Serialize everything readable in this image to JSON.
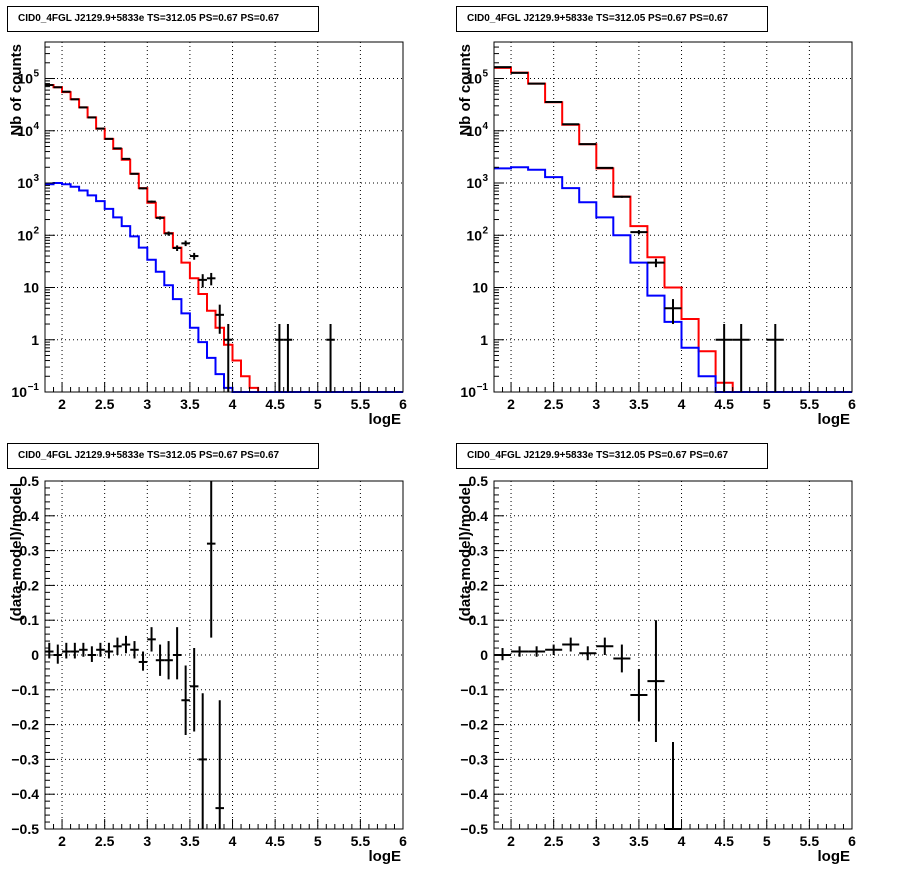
{
  "chart_data": [
    {
      "id": "spectrum-left",
      "type": "line",
      "title": "CID0_4FGL J2129.9+5833e TS=312.05 PS=0.67 PS=0.67",
      "xlabel": "logE",
      "ylabel": "Nb of counts",
      "xlim": [
        1.8,
        6.0
      ],
      "ylim": [
        0.1,
        500000
      ],
      "yscale": "log",
      "grid": true,
      "x_ticks": [
        "2",
        "2.5",
        "3",
        "3.5",
        "4",
        "4.5",
        "5",
        "5.5",
        "6"
      ],
      "y_ticks": [
        {
          "v": 0.1,
          "label": "10",
          "exp": "−1"
        },
        {
          "v": 1,
          "label": "1"
        },
        {
          "v": 10,
          "label": "10"
        },
        {
          "v": 100,
          "label": "10",
          "exp": "2"
        },
        {
          "v": 1000,
          "label": "10",
          "exp": "3"
        },
        {
          "v": 10000,
          "label": "10",
          "exp": "4"
        },
        {
          "v": 100000,
          "label": "10",
          "exp": "5"
        }
      ],
      "series": [
        {
          "color": "#ff0000",
          "style": "step",
          "edges": [
            1.8,
            1.9,
            2.0,
            2.1,
            2.2,
            2.3,
            2.4,
            2.5,
            2.6,
            2.7,
            2.8,
            2.9,
            3.0,
            3.1,
            3.2,
            3.3,
            3.4,
            3.5,
            3.6,
            3.7,
            3.8,
            3.9,
            4.0,
            4.1,
            4.2,
            4.3,
            4.4,
            4.5,
            4.6,
            4.7
          ],
          "values": [
            75000,
            68000,
            55000,
            40000,
            28000,
            18000,
            11000,
            7000,
            4500,
            2800,
            1500,
            800,
            420,
            220,
            110,
            58,
            30,
            15,
            7.5,
            3.6,
            1.7,
            0.8,
            0.4,
            0.2,
            0.12,
            0.1,
            0.1,
            0.1,
            0.1
          ]
        },
        {
          "color": "#0000ff",
          "style": "step",
          "edges": [
            1.8,
            1.9,
            2.0,
            2.1,
            2.2,
            2.3,
            2.4,
            2.5,
            2.6,
            2.7,
            2.8,
            2.9,
            3.0,
            3.1,
            3.2,
            3.3,
            3.4,
            3.5,
            3.6,
            3.7,
            3.8,
            3.9,
            4.0,
            4.1,
            4.2,
            4.3
          ],
          "values": [
            950,
            1000,
            950,
            850,
            720,
            580,
            450,
            320,
            220,
            150,
            95,
            58,
            34,
            20,
            11,
            6,
            3.2,
            1.7,
            0.9,
            0.45,
            0.22,
            0.12,
            0.1,
            0.1,
            0.1
          ]
        },
        {
          "color": "#000000",
          "style": "errorbar",
          "points": [
            {
              "x": 1.85,
              "y": 75000,
              "xerr": 0.05,
              "lo": 74700,
              "hi": 75300
            },
            {
              "x": 1.95,
              "y": 68000,
              "xerr": 0.05,
              "lo": 67700,
              "hi": 68300
            },
            {
              "x": 2.05,
              "y": 56000,
              "xerr": 0.05,
              "lo": 55700,
              "hi": 56300
            },
            {
              "x": 2.15,
              "y": 40000,
              "xerr": 0.05,
              "lo": 39800,
              "hi": 40200
            },
            {
              "x": 2.25,
              "y": 28000,
              "xerr": 0.05,
              "lo": 27800,
              "hi": 28200
            },
            {
              "x": 2.35,
              "y": 18000,
              "xerr": 0.05,
              "lo": 17800,
              "hi": 18200
            },
            {
              "x": 2.45,
              "y": 11000,
              "xerr": 0.05,
              "lo": 10900,
              "hi": 11100
            },
            {
              "x": 2.55,
              "y": 7000,
              "xerr": 0.05,
              "lo": 6900,
              "hi": 7100
            },
            {
              "x": 2.65,
              "y": 4600,
              "xerr": 0.05,
              "lo": 4530,
              "hi": 4670
            },
            {
              "x": 2.75,
              "y": 2900,
              "xerr": 0.05,
              "lo": 2850,
              "hi": 2950
            },
            {
              "x": 2.85,
              "y": 1500,
              "xerr": 0.05,
              "lo": 1460,
              "hi": 1540
            },
            {
              "x": 2.95,
              "y": 790,
              "xerr": 0.05,
              "lo": 760,
              "hi": 820
            },
            {
              "x": 3.05,
              "y": 440,
              "xerr": 0.05,
              "lo": 420,
              "hi": 460
            },
            {
              "x": 3.15,
              "y": 215,
              "xerr": 0.05,
              "lo": 200,
              "hi": 230
            },
            {
              "x": 3.25,
              "y": 108,
              "xerr": 0.05,
              "lo": 98,
              "hi": 118
            },
            {
              "x": 3.35,
              "y": 57,
              "xerr": 0.05,
              "lo": 50,
              "hi": 64
            },
            {
              "x": 3.45,
              "y": 70,
              "xerr": 0.05,
              "lo": 62,
              "hi": 79
            },
            {
              "x": 3.55,
              "y": 40,
              "xerr": 0.05,
              "lo": 34,
              "hi": 46
            },
            {
              "x": 3.65,
              "y": 14,
              "xerr": 0.05,
              "lo": 10,
              "hi": 18
            },
            {
              "x": 3.75,
              "y": 15,
              "xerr": 0.05,
              "lo": 11,
              "hi": 19
            },
            {
              "x": 3.85,
              "y": 3,
              "xerr": 0.05,
              "lo": 1.3,
              "hi": 4.7
            },
            {
              "x": 3.95,
              "y": 1,
              "xerr": 0.05,
              "lo": 0.1,
              "hi": 2.0
            },
            {
              "x": 4.55,
              "y": 1,
              "xerr": 0.05,
              "lo": 0.1,
              "hi": 2.0
            },
            {
              "x": 4.65,
              "y": 1,
              "xerr": 0.05,
              "lo": 0.1,
              "hi": 2.0
            },
            {
              "x": 5.15,
              "y": 1,
              "xerr": 0.05,
              "lo": 0.1,
              "hi": 2.0
            }
          ]
        }
      ]
    },
    {
      "id": "spectrum-right",
      "type": "line",
      "title": "CID0_4FGL J2129.9+5833e TS=312.05 PS=0.67 PS=0.67",
      "xlabel": "logE",
      "ylabel": "Nb of counts",
      "xlim": [
        1.8,
        6.0
      ],
      "ylim": [
        0.1,
        500000
      ],
      "yscale": "log",
      "grid": true,
      "x_ticks": [
        "2",
        "2.5",
        "3",
        "3.5",
        "4",
        "4.5",
        "5",
        "5.5",
        "6"
      ],
      "y_ticks": [
        {
          "v": 0.1,
          "label": "10",
          "exp": "−1"
        },
        {
          "v": 1,
          "label": "1"
        },
        {
          "v": 10,
          "label": "10"
        },
        {
          "v": 100,
          "label": "10",
          "exp": "2"
        },
        {
          "v": 1000,
          "label": "10",
          "exp": "3"
        },
        {
          "v": 10000,
          "label": "10",
          "exp": "4"
        },
        {
          "v": 100000,
          "label": "10",
          "exp": "5"
        }
      ],
      "series": [
        {
          "color": "#ff0000",
          "style": "step",
          "edges": [
            1.8,
            2.0,
            2.2,
            2.4,
            2.6,
            2.8,
            3.0,
            3.2,
            3.4,
            3.6,
            3.8,
            4.0,
            4.2,
            4.4,
            4.6,
            4.8
          ],
          "values": [
            160000,
            130000,
            80000,
            35000,
            13000,
            5500,
            1900,
            550,
            150,
            38,
            10,
            2.5,
            0.6,
            0.15,
            0.1
          ]
        },
        {
          "color": "#0000ff",
          "style": "step",
          "edges": [
            1.8,
            2.0,
            2.2,
            2.4,
            2.6,
            2.8,
            3.0,
            3.2,
            3.4,
            3.6,
            3.8,
            4.0,
            4.2,
            4.4,
            4.6
          ],
          "values": [
            1900,
            2000,
            1800,
            1300,
            800,
            430,
            220,
            100,
            30,
            7,
            2.2,
            0.7,
            0.2,
            0.1
          ]
        },
        {
          "color": "#000000",
          "style": "errorbar",
          "points": [
            {
              "x": 1.9,
              "y": 165000,
              "xerr": 0.1,
              "lo": 164500,
              "hi": 165500
            },
            {
              "x": 2.1,
              "y": 128000,
              "xerr": 0.1,
              "lo": 127600,
              "hi": 128400
            },
            {
              "x": 2.3,
              "y": 80000,
              "xerr": 0.1,
              "lo": 79700,
              "hi": 80300
            },
            {
              "x": 2.5,
              "y": 35500,
              "xerr": 0.1,
              "lo": 35300,
              "hi": 35700
            },
            {
              "x": 2.7,
              "y": 13300,
              "xerr": 0.1,
              "lo": 13180,
              "hi": 13420
            },
            {
              "x": 2.9,
              "y": 5550,
              "xerr": 0.1,
              "lo": 5480,
              "hi": 5620
            },
            {
              "x": 3.1,
              "y": 1950,
              "xerr": 0.1,
              "lo": 1910,
              "hi": 1990
            },
            {
              "x": 3.3,
              "y": 545,
              "xerr": 0.1,
              "lo": 522,
              "hi": 568
            },
            {
              "x": 3.5,
              "y": 115,
              "xerr": 0.1,
              "lo": 105,
              "hi": 126
            },
            {
              "x": 3.7,
              "y": 30,
              "xerr": 0.1,
              "lo": 24.5,
              "hi": 35.5
            },
            {
              "x": 3.9,
              "y": 4,
              "xerr": 0.1,
              "lo": 2,
              "hi": 6
            },
            {
              "x": 4.5,
              "y": 1,
              "xerr": 0.1,
              "lo": 0.1,
              "hi": 2.0
            },
            {
              "x": 4.7,
              "y": 1,
              "xerr": 0.1,
              "lo": 0.1,
              "hi": 2.0
            },
            {
              "x": 5.1,
              "y": 1,
              "xerr": 0.1,
              "lo": 0.1,
              "hi": 2.0
            }
          ]
        }
      ]
    },
    {
      "id": "residual-left",
      "type": "scatter",
      "title": "CID0_4FGL J2129.9+5833e TS=312.05 PS=0.67 PS=0.67",
      "xlabel": "logE",
      "ylabel": "(data-model)/model",
      "xlim": [
        1.8,
        6.0
      ],
      "ylim": [
        -0.5,
        0.5
      ],
      "yscale": "linear",
      "grid": true,
      "x_ticks": [
        "2",
        "2.5",
        "3",
        "3.5",
        "4",
        "4.5",
        "5",
        "5.5",
        "6"
      ],
      "y_ticks": [
        {
          "v": -0.5,
          "label": "−0.5"
        },
        {
          "v": -0.4,
          "label": "−0.4"
        },
        {
          "v": -0.3,
          "label": "−0.3"
        },
        {
          "v": -0.2,
          "label": "−0.2"
        },
        {
          "v": -0.1,
          "label": "−0.1"
        },
        {
          "v": 0,
          "label": "0"
        },
        {
          "v": 0.1,
          "label": "0.1"
        },
        {
          "v": 0.2,
          "label": "0.2"
        },
        {
          "v": 0.3,
          "label": "0.3"
        },
        {
          "v": 0.4,
          "label": "0.4"
        },
        {
          "v": 0.5,
          "label": "0.5"
        }
      ],
      "series": [
        {
          "color": "#000000",
          "style": "errorbar",
          "points": [
            {
              "x": 1.85,
              "y": 0.01,
              "xerr": 0.05,
              "lo": -0.01,
              "hi": 0.035
            },
            {
              "x": 1.95,
              "y": 0.0,
              "xerr": 0.05,
              "lo": -0.025,
              "hi": 0.03
            },
            {
              "x": 2.05,
              "y": 0.01,
              "xerr": 0.05,
              "lo": -0.01,
              "hi": 0.035
            },
            {
              "x": 2.15,
              "y": 0.01,
              "xerr": 0.05,
              "lo": -0.01,
              "hi": 0.035
            },
            {
              "x": 2.25,
              "y": 0.015,
              "xerr": 0.05,
              "lo": -0.005,
              "hi": 0.035
            },
            {
              "x": 2.35,
              "y": 0.0,
              "xerr": 0.05,
              "lo": -0.02,
              "hi": 0.025
            },
            {
              "x": 2.45,
              "y": 0.015,
              "xerr": 0.05,
              "lo": -0.005,
              "hi": 0.035
            },
            {
              "x": 2.55,
              "y": 0.01,
              "xerr": 0.05,
              "lo": -0.01,
              "hi": 0.035
            },
            {
              "x": 2.65,
              "y": 0.025,
              "xerr": 0.05,
              "lo": 0.0,
              "hi": 0.05
            },
            {
              "x": 2.75,
              "y": 0.03,
              "xerr": 0.05,
              "lo": 0.005,
              "hi": 0.055
            },
            {
              "x": 2.85,
              "y": 0.015,
              "xerr": 0.05,
              "lo": -0.01,
              "hi": 0.04
            },
            {
              "x": 2.95,
              "y": -0.02,
              "xerr": 0.05,
              "lo": -0.045,
              "hi": 0.01
            },
            {
              "x": 3.05,
              "y": 0.045,
              "xerr": 0.05,
              "lo": 0.01,
              "hi": 0.08
            },
            {
              "x": 3.15,
              "y": -0.015,
              "xerr": 0.05,
              "lo": -0.06,
              "hi": 0.03
            },
            {
              "x": 3.25,
              "y": -0.015,
              "xerr": 0.05,
              "lo": -0.07,
              "hi": 0.04
            },
            {
              "x": 3.35,
              "y": 0.0,
              "xerr": 0.05,
              "lo": -0.07,
              "hi": 0.08
            },
            {
              "x": 3.45,
              "y": -0.13,
              "xerr": 0.05,
              "lo": -0.23,
              "hi": -0.03
            },
            {
              "x": 3.55,
              "y": -0.09,
              "xerr": 0.05,
              "lo": -0.22,
              "hi": 0.02
            },
            {
              "x": 3.65,
              "y": -0.3,
              "xerr": 0.05,
              "lo": -0.5,
              "hi": -0.11
            },
            {
              "x": 3.75,
              "y": 0.32,
              "xerr": 0.05,
              "lo": 0.05,
              "hi": 0.5
            },
            {
              "x": 3.85,
              "y": -0.44,
              "xerr": 0.05,
              "lo": -0.5,
              "hi": -0.13
            }
          ]
        }
      ]
    },
    {
      "id": "residual-right",
      "type": "scatter",
      "title": "CID0_4FGL J2129.9+5833e TS=312.05 PS=0.67 PS=0.67",
      "xlabel": "logE",
      "ylabel": "(data-model)/model",
      "xlim": [
        1.8,
        6.0
      ],
      "ylim": [
        -0.5,
        0.5
      ],
      "yscale": "linear",
      "grid": true,
      "x_ticks": [
        "2",
        "2.5",
        "3",
        "3.5",
        "4",
        "4.5",
        "5",
        "5.5",
        "6"
      ],
      "y_ticks": [
        {
          "v": -0.5,
          "label": "−0.5"
        },
        {
          "v": -0.4,
          "label": "−0.4"
        },
        {
          "v": -0.3,
          "label": "−0.3"
        },
        {
          "v": -0.2,
          "label": "−0.2"
        },
        {
          "v": -0.1,
          "label": "−0.1"
        },
        {
          "v": 0,
          "label": "0"
        },
        {
          "v": 0.1,
          "label": "0.1"
        },
        {
          "v": 0.2,
          "label": "0.2"
        },
        {
          "v": 0.3,
          "label": "0.3"
        },
        {
          "v": 0.4,
          "label": "0.4"
        },
        {
          "v": 0.5,
          "label": "0.5"
        }
      ],
      "series": [
        {
          "color": "#000000",
          "style": "errorbar",
          "points": [
            {
              "x": 1.9,
              "y": 0.0,
              "xerr": 0.1,
              "lo": -0.015,
              "hi": 0.02
            },
            {
              "x": 2.1,
              "y": 0.01,
              "xerr": 0.1,
              "lo": -0.005,
              "hi": 0.025
            },
            {
              "x": 2.3,
              "y": 0.01,
              "xerr": 0.1,
              "lo": -0.005,
              "hi": 0.025
            },
            {
              "x": 2.5,
              "y": 0.015,
              "xerr": 0.1,
              "lo": 0.0,
              "hi": 0.03
            },
            {
              "x": 2.7,
              "y": 0.03,
              "xerr": 0.1,
              "lo": 0.01,
              "hi": 0.05
            },
            {
              "x": 2.9,
              "y": 0.005,
              "xerr": 0.1,
              "lo": -0.015,
              "hi": 0.025
            },
            {
              "x": 3.1,
              "y": 0.025,
              "xerr": 0.1,
              "lo": 0.0,
              "hi": 0.05
            },
            {
              "x": 3.3,
              "y": -0.01,
              "xerr": 0.1,
              "lo": -0.05,
              "hi": 0.03
            },
            {
              "x": 3.5,
              "y": -0.115,
              "xerr": 0.1,
              "lo": -0.19,
              "hi": -0.04
            },
            {
              "x": 3.7,
              "y": -0.075,
              "xerr": 0.1,
              "lo": -0.25,
              "hi": 0.1
            },
            {
              "x": 3.9,
              "y": -0.5,
              "xerr": 0.1,
              "lo": -0.5,
              "hi": -0.25
            }
          ]
        }
      ]
    }
  ]
}
